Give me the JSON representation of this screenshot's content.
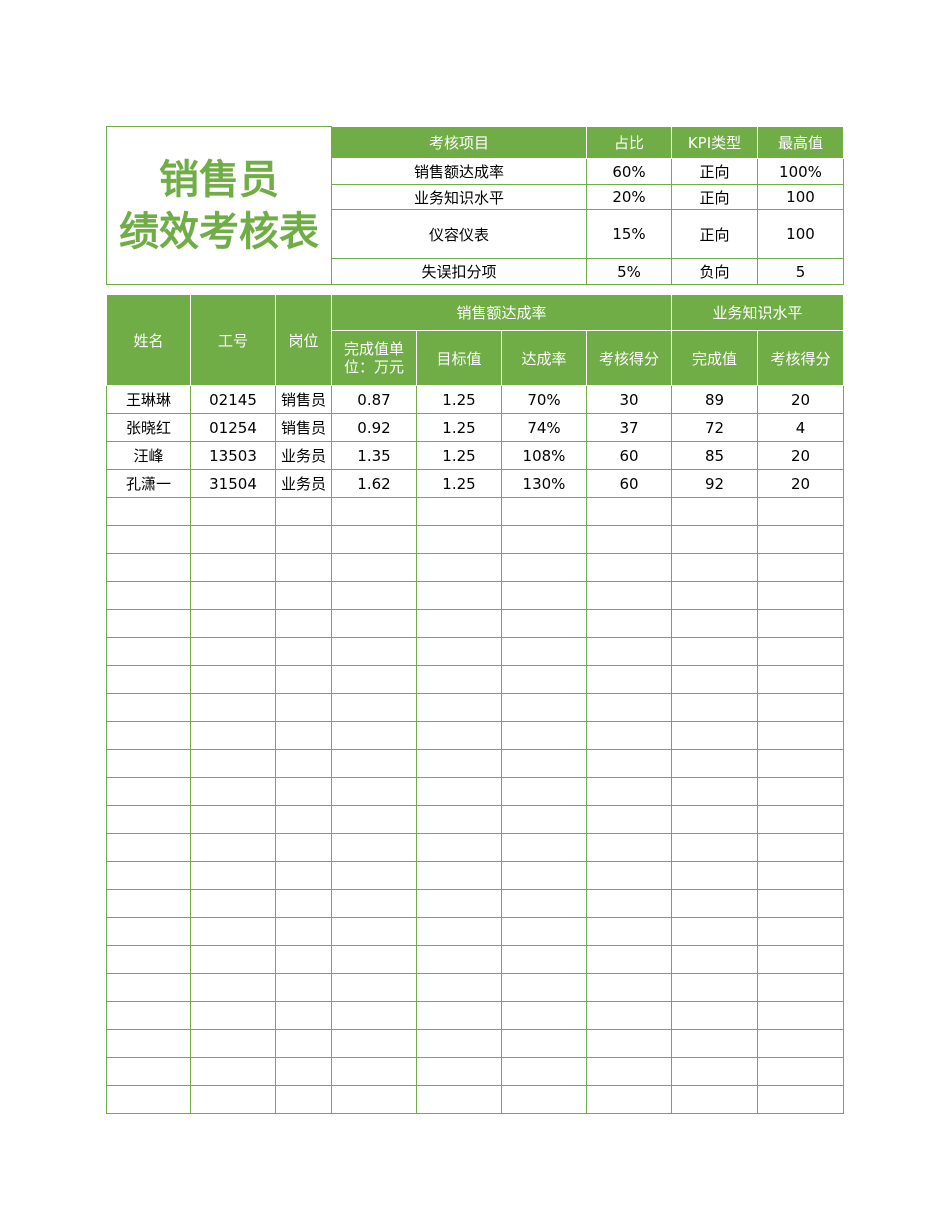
{
  "title": {
    "line1": "销售员",
    "line2": "绩效考核表"
  },
  "kpi_table": {
    "headers": [
      "考核项目",
      "占比",
      "KPI类型",
      "最高值"
    ],
    "rows": [
      [
        "销售额达成率",
        "60%",
        "正向",
        "100%"
      ],
      [
        "业务知识水平",
        "20%",
        "正向",
        "100"
      ],
      [
        "仪容仪表",
        "15%",
        "正向",
        "100"
      ],
      [
        "失误扣分项",
        "5%",
        "负向",
        "5"
      ]
    ]
  },
  "main_table": {
    "headers": {
      "name": "姓名",
      "id": "工号",
      "position": "岗位",
      "sales_group": "销售额达成率",
      "knowledge_group": "业务知识水平",
      "sub": [
        "完成值单位：万元",
        "目标值",
        "达成率",
        "考核得分",
        "完成值",
        "考核得分"
      ]
    },
    "rows": [
      [
        "王琳琳",
        "02145",
        "销售员",
        "0.87",
        "1.25",
        "70%",
        "30",
        "89",
        "20"
      ],
      [
        "张晓红",
        "01254",
        "销售员",
        "0.92",
        "1.25",
        "74%",
        "37",
        "72",
        "4"
      ],
      [
        "汪峰",
        "13503",
        "业务员",
        "1.35",
        "1.25",
        "108%",
        "60",
        "85",
        "20"
      ],
      [
        "孔潇一",
        "31504",
        "业务员",
        "1.62",
        "1.25",
        "130%",
        "60",
        "92",
        "20"
      ]
    ],
    "empty_rows": 22
  },
  "colors": {
    "accent": "#70ad47"
  }
}
